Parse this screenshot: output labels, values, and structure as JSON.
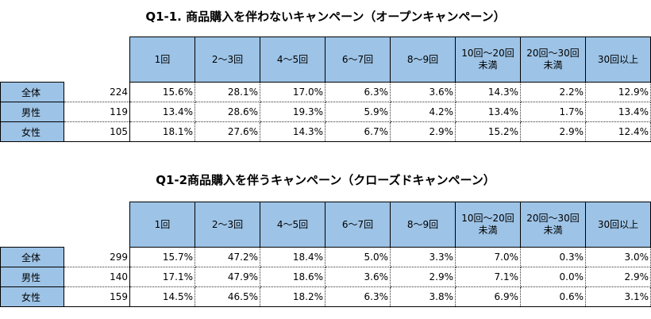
{
  "table1": {
    "title": "Q1-1. 商品購入を伴わないキャンペーン（オープンキャンペーン）",
    "headers": [
      "1回",
      "2〜3回",
      "4〜5回",
      "6〜7回",
      "8〜9回",
      "10回〜20回\n未満",
      "20回〜30回\n未満",
      "30回以上"
    ],
    "rows": [
      {
        "label": "全体",
        "n": "224",
        "values": [
          "15.6%",
          "28.1%",
          "17.0%",
          "6.3%",
          "3.6%",
          "14.3%",
          "2.2%",
          "12.9%"
        ]
      },
      {
        "label": "男性",
        "n": "119",
        "values": [
          "13.4%",
          "28.6%",
          "19.3%",
          "5.9%",
          "4.2%",
          "13.4%",
          "1.7%",
          "13.4%"
        ]
      },
      {
        "label": "女性",
        "n": "105",
        "values": [
          "18.1%",
          "27.6%",
          "14.3%",
          "6.7%",
          "2.9%",
          "15.2%",
          "2.9%",
          "12.4%"
        ]
      }
    ]
  },
  "table2": {
    "title": "Q1-2商品購入を伴うキャンペーン（クローズドキャンペーン）",
    "headers": [
      "1回",
      "2〜3回",
      "4〜5回",
      "6〜7回",
      "8〜9回",
      "10回〜20回\n未満",
      "20回〜30回\n未満",
      "30回以上"
    ],
    "rows": [
      {
        "label": "全体",
        "n": "299",
        "values": [
          "15.7%",
          "47.2%",
          "18.4%",
          "5.0%",
          "3.3%",
          "7.0%",
          "0.3%",
          "3.0%"
        ]
      },
      {
        "label": "男性",
        "n": "140",
        "values": [
          "17.1%",
          "47.9%",
          "18.6%",
          "3.6%",
          "2.9%",
          "7.1%",
          "0.0%",
          "2.9%"
        ]
      },
      {
        "label": "女性",
        "n": "159",
        "values": [
          "14.5%",
          "46.5%",
          "18.2%",
          "6.3%",
          "3.8%",
          "6.9%",
          "0.6%",
          "3.1%"
        ]
      }
    ]
  }
}
